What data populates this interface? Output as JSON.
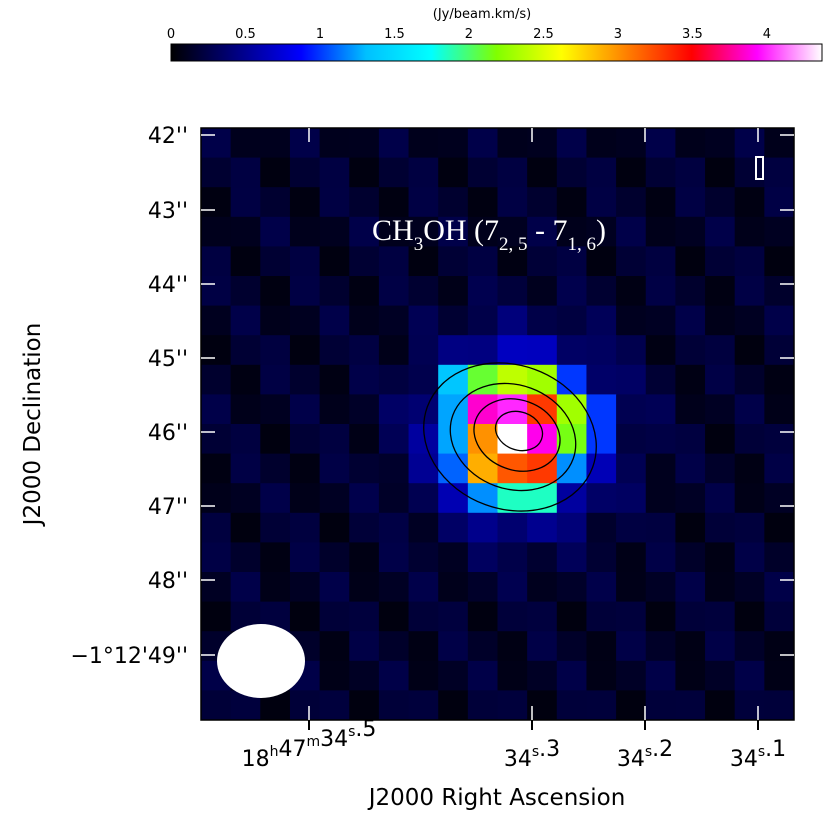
{
  "colorbar": {
    "unit": "(Jy/beam.km/s)",
    "min": 0,
    "max": 4.37,
    "ticks": [
      "0",
      "0.5",
      "1",
      "1.5",
      "2",
      "2.5",
      "3",
      "3.5",
      "4"
    ],
    "tick_values": [
      0,
      0.5,
      1,
      1.5,
      2,
      2.5,
      3,
      3.5,
      4
    ],
    "colors": [
      "#000000",
      "#000080",
      "#0000ff",
      "#00c0ff",
      "#00ffff",
      "#80ff00",
      "#ffff00",
      "#ff8000",
      "#ff0000",
      "#ff00ff",
      "#ffffff"
    ]
  },
  "title": {
    "main": "CH",
    "sub3": "3",
    "rest": "OH (7",
    "sub_a": "2, 5",
    "mid": " - 7",
    "sub_b": "1, 6",
    "end": ")"
  },
  "axes": {
    "xlabel": "J2000 Right Ascension",
    "ylabel": "J2000 Declination",
    "dec_ticks": [
      "42''",
      "43''",
      "44''",
      "45''",
      "46''",
      "47''",
      "48''",
      "−1°12'49''"
    ],
    "ra_ticks": [
      {
        "pre": "18",
        "h": "h",
        "mid1": "47",
        "m": "m",
        "mid2": "34",
        "s": "s",
        "post": ".5"
      },
      {
        "pre": "",
        "h": "",
        "mid1": "",
        "m": "",
        "mid2": "34",
        "s": "s",
        "post": ".3"
      },
      {
        "pre": "",
        "h": "",
        "mid1": "",
        "m": "",
        "mid2": "34",
        "s": "s",
        "post": ".2"
      },
      {
        "pre": "",
        "h": "",
        "mid1": "",
        "m": "",
        "mid2": "34",
        "s": "s",
        "post": ".1"
      }
    ]
  },
  "chart_data": {
    "type": "heatmap",
    "title": "CH3OH (7_2,5 - 7_1,6)",
    "xlabel": "J2000 Right Ascension",
    "ylabel": "J2000 Declination",
    "x_ticks": [
      "18h47m34s.5",
      "34s.3",
      "34s.2",
      "34s.1"
    ],
    "y_ticks": [
      "42''",
      "43''",
      "44''",
      "45''",
      "46''",
      "47''",
      "48''",
      "-1°12'49''"
    ],
    "colorbar_unit": "(Jy/beam.km/s)",
    "colorbar_range": [
      0,
      4.37
    ],
    "grid_rows": 20,
    "grid_cols": 20,
    "background_level": 0.25,
    "peak_values": [
      {
        "row": 10,
        "col": 10,
        "value": 4.37
      },
      {
        "row": 9,
        "col": 10,
        "value": 4.0
      },
      {
        "row": 9,
        "col": 11,
        "value": 3.3
      },
      {
        "row": 10,
        "col": 11,
        "value": 3.9
      },
      {
        "row": 11,
        "col": 10,
        "value": 3.2
      },
      {
        "row": 11,
        "col": 11,
        "value": 3.3
      },
      {
        "row": 9,
        "col": 9,
        "value": 3.85
      },
      {
        "row": 10,
        "col": 9,
        "value": 3.0
      },
      {
        "row": 11,
        "col": 9,
        "value": 2.9
      },
      {
        "row": 8,
        "col": 10,
        "value": 2.4
      },
      {
        "row": 8,
        "col": 9,
        "value": 2.1
      },
      {
        "row": 8,
        "col": 11,
        "value": 2.3
      },
      {
        "row": 9,
        "col": 12,
        "value": 2.3
      },
      {
        "row": 10,
        "col": 12,
        "value": 2.15
      },
      {
        "row": 11,
        "col": 12,
        "value": 1.2
      },
      {
        "row": 12,
        "col": 10,
        "value": 1.85
      },
      {
        "row": 12,
        "col": 11,
        "value": 1.85
      },
      {
        "row": 12,
        "col": 9,
        "value": 1.2
      },
      {
        "row": 9,
        "col": 8,
        "value": 1.25
      },
      {
        "row": 10,
        "col": 8,
        "value": 1.25
      },
      {
        "row": 11,
        "col": 8,
        "value": 1.1
      },
      {
        "row": 8,
        "col": 8,
        "value": 1.35
      },
      {
        "row": 8,
        "col": 12,
        "value": 1.0
      },
      {
        "row": 10,
        "col": 13,
        "value": 1.0
      },
      {
        "row": 9,
        "col": 13,
        "value": 1.0
      }
    ],
    "contour_levels": 4,
    "beam": "ellipse lower-left",
    "grid": false
  }
}
